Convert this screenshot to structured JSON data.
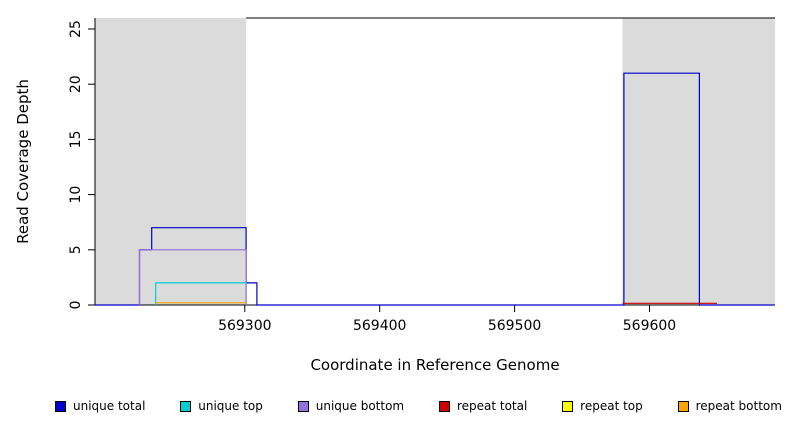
{
  "chart_data": {
    "type": "line",
    "subtype": "step-coverage",
    "title": "",
    "xlabel": "Coordinate in Reference Genome",
    "ylabel": "Read Coverage Depth",
    "xlim": [
      569189,
      569693
    ],
    "ylim": [
      0,
      26
    ],
    "x_ticks": [
      569300,
      569400,
      569500,
      569600
    ],
    "y_ticks": [
      0,
      5,
      10,
      15,
      20,
      25
    ],
    "grid": false,
    "legend_position": "bottom",
    "background_color": "#ffffff",
    "masked_region_color": "#dbdbdb",
    "shaded_regions": [
      {
        "x0": 569189,
        "x1": 569301,
        "color": "#dbdbdb"
      },
      {
        "x0": 569580,
        "x1": 569693,
        "color": "#dbdbdb"
      }
    ],
    "top_border": {
      "x0": 569301,
      "x1": 569693,
      "y": 26
    },
    "series": [
      {
        "name": "unique total",
        "color": "#0000cd",
        "points": [
          [
            569189,
            0
          ],
          [
            569222,
            0
          ],
          [
            569222,
            5
          ],
          [
            569231,
            5
          ],
          [
            569231,
            7
          ],
          [
            569301,
            7
          ],
          [
            569301,
            2
          ],
          [
            569309,
            2
          ],
          [
            569309,
            0
          ],
          [
            569581,
            0
          ],
          [
            569581,
            21
          ],
          [
            569637,
            21
          ],
          [
            569637,
            0
          ],
          [
            569693,
            0
          ]
        ]
      },
      {
        "name": "unique top",
        "color": "#00ced1",
        "points": [
          [
            569234,
            0
          ],
          [
            569234,
            2
          ],
          [
            569301,
            2
          ],
          [
            569301,
            0
          ]
        ]
      },
      {
        "name": "unique bottom",
        "color": "#9370db",
        "points": [
          [
            569222,
            0
          ],
          [
            569222,
            5
          ],
          [
            569301,
            5
          ],
          [
            569301,
            0
          ]
        ]
      },
      {
        "name": "repeat total",
        "color": "#cc0000",
        "points": [
          [
            569580,
            0.15
          ],
          [
            569650,
            0.15
          ]
        ]
      },
      {
        "name": "repeat top",
        "color": "#ffff00",
        "points": []
      },
      {
        "name": "repeat bottom",
        "color": "#ffa500",
        "points": [
          [
            569234,
            0.2
          ],
          [
            569301,
            0.2
          ]
        ]
      }
    ],
    "legend": [
      {
        "label": "unique total",
        "color": "#0000cd"
      },
      {
        "label": "unique top",
        "color": "#00ced1"
      },
      {
        "label": "unique bottom",
        "color": "#9370db"
      },
      {
        "label": "repeat total",
        "color": "#cc0000"
      },
      {
        "label": "repeat top",
        "color": "#ffff00"
      },
      {
        "label": "repeat bottom",
        "color": "#ffa500"
      }
    ]
  }
}
